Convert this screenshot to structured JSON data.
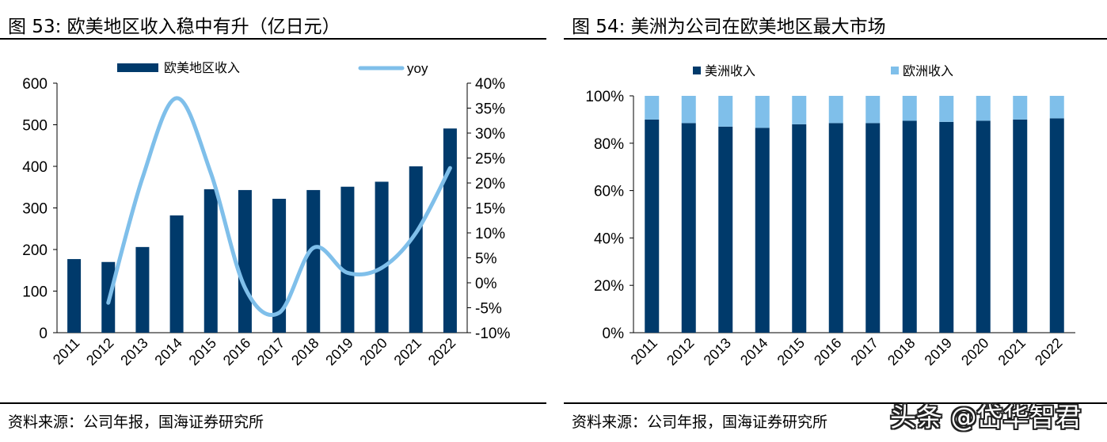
{
  "left": {
    "title": "图 53:  欧美地区收入稳中有升（亿日元）",
    "source": "资料来源：公司年报，国海证券研究所"
  },
  "right": {
    "title": "图 54:  美洲为公司在欧美地区最大市场",
    "source": "资料来源：公司年报，国海证券研究所"
  },
  "watermark": "头条 @岱华智君",
  "chart_data": [
    {
      "type": "bar+line",
      "title": "图 53:  欧美地区收入稳中有升（亿日元）",
      "categories": [
        "2011",
        "2012",
        "2013",
        "2014",
        "2015",
        "2016",
        "2017",
        "2018",
        "2019",
        "2020",
        "2021",
        "2022"
      ],
      "series": [
        {
          "name": "欧美地区收入",
          "type": "bar",
          "axis": "left",
          "color": "#003a6b",
          "values": [
            177,
            170,
            206,
            282,
            345,
            343,
            322,
            343,
            351,
            363,
            400,
            491
          ]
        },
        {
          "name": "yoy",
          "type": "line",
          "axis": "right",
          "color": "#7fbfea",
          "values": [
            null,
            -4,
            21,
            37,
            22,
            -1,
            -6,
            7,
            2,
            3,
            10,
            23
          ]
        }
      ],
      "ylim_left": [
        0,
        600
      ],
      "yticks_left": [
        "0",
        "100",
        "200",
        "300",
        "400",
        "500",
        "600"
      ],
      "ylim_right": [
        -10,
        40
      ],
      "yticks_right": [
        "-10%",
        "-5%",
        "0%",
        "5%",
        "10%",
        "15%",
        "20%",
        "25%",
        "30%",
        "35%",
        "40%"
      ],
      "legend": "top"
    },
    {
      "type": "stacked-bar",
      "title": "图 54:  美洲为公司在欧美地区最大市场",
      "categories": [
        "2011",
        "2012",
        "2013",
        "2014",
        "2015",
        "2016",
        "2017",
        "2018",
        "2019",
        "2020",
        "2021",
        "2022"
      ],
      "series": [
        {
          "name": "美洲收入",
          "color": "#003a6b",
          "values": [
            90,
            88.5,
            87,
            86.5,
            88,
            88.5,
            88.5,
            89.5,
            89,
            89.5,
            90,
            90.5
          ]
        },
        {
          "name": "欧洲收入",
          "color": "#7fbfea",
          "values": [
            10,
            11.5,
            13,
            13.5,
            12,
            11.5,
            11.5,
            10.5,
            11,
            10.5,
            10,
            9.5
          ]
        }
      ],
      "ylim": [
        0,
        100
      ],
      "yticks": [
        "0%",
        "20%",
        "40%",
        "60%",
        "80%",
        "100%"
      ],
      "legend": "top"
    }
  ]
}
